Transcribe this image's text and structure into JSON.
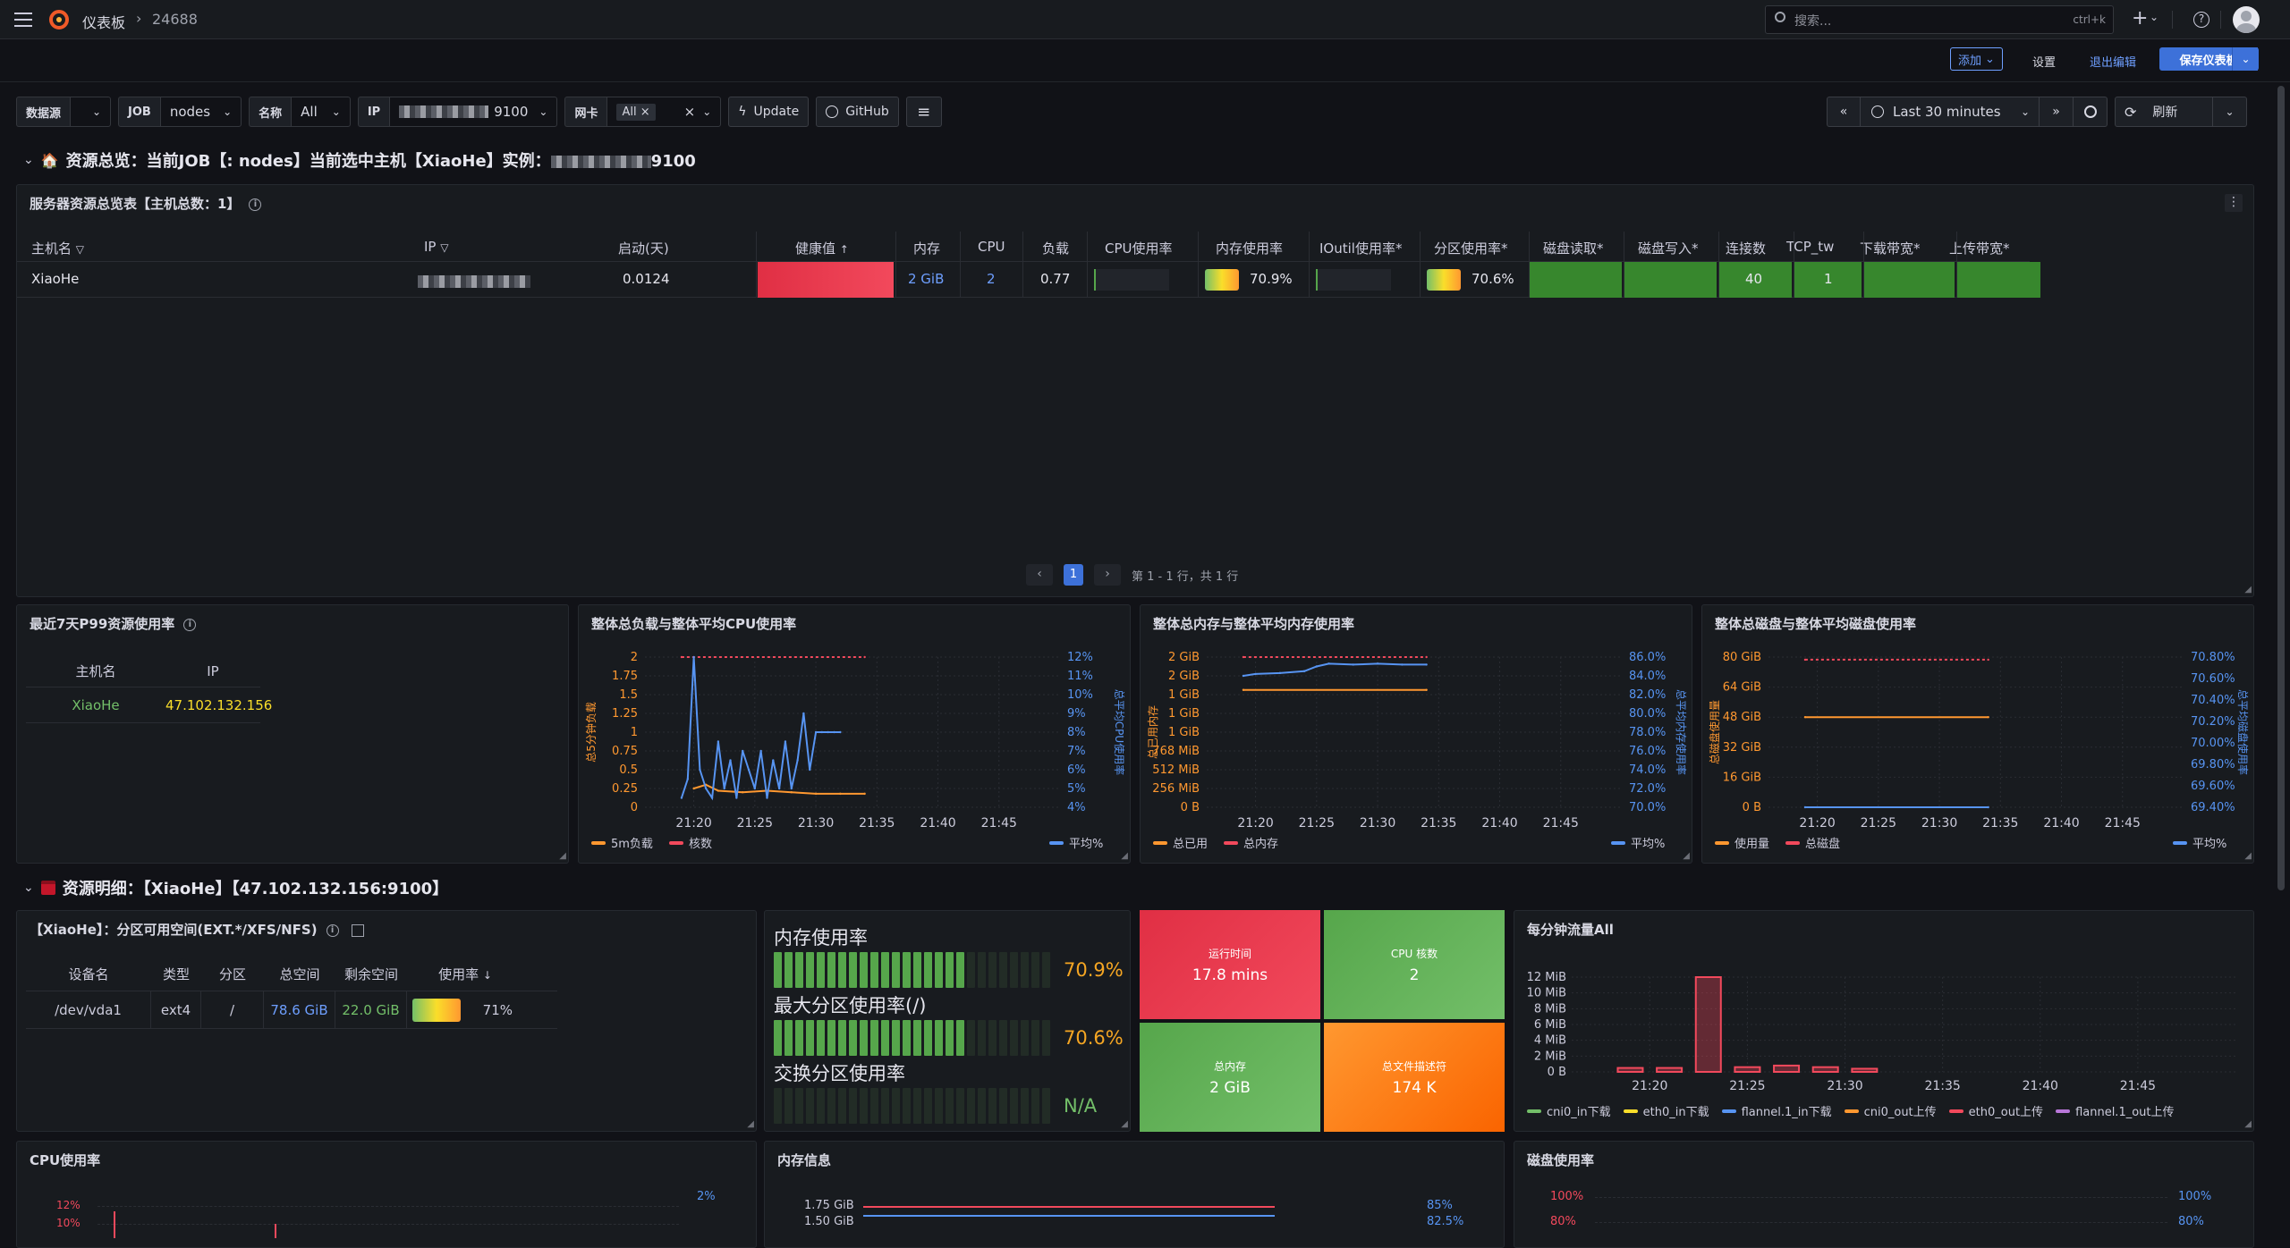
{
  "topbar": {
    "breadcrumb_root": "仪表板",
    "breadcrumb_current": "24688",
    "search_placeholder": "搜索...",
    "search_shortcut": "ctrl+k",
    "add_label": "添加",
    "settings_label": "设置",
    "exit_edit_label": "退出编辑",
    "save_label": "保存仪表板"
  },
  "variables": {
    "datasource_label": "数据源",
    "job_label": "JOB",
    "job_value": "nodes",
    "name_label": "名称",
    "name_value": "All",
    "ip_label": "IP",
    "ip_value_tail": "9100",
    "nic_label": "网卡",
    "nic_value": "All",
    "update_label": "Update",
    "github_label": "GitHub"
  },
  "timepicker": {
    "range_label": "Last 30 minutes",
    "refresh_label": "刷新"
  },
  "row1": {
    "title_prefix": "资源总览：当前JOB【: nodes】当前选中主机【XiaoHe】实例：",
    "title_suffix": "9100"
  },
  "overview_table": {
    "title": "服务器资源总览表【主机总数：1】",
    "headers": [
      "主机名",
      "IP",
      "启动(天)",
      "健康值",
      "内存",
      "CPU",
      "负载",
      "CPU使用率",
      "内存使用率",
      "IOutil使用率*",
      "分区使用率*",
      "磁盘读取*",
      "磁盘写入*",
      "连接数",
      "TCP_tw",
      "下载带宽*",
      "上传带宽*"
    ],
    "row": {
      "hostname": "XiaoHe",
      "uptime": "0.0124",
      "memory": "2 GiB",
      "cpu": "2",
      "load": "0.77",
      "mem_usage": "70.9%",
      "mem_usage_fraction": 0.709,
      "part_usage": "70.6%",
      "part_usage_fraction": 0.706,
      "connections": "40",
      "tcp_tw": "1"
    },
    "pagination": {
      "page": "1",
      "summary": "第 1 - 1 行，共 1 行"
    }
  },
  "p99_panel": {
    "title": "最近7天P99资源使用率",
    "headers": [
      "主机名",
      "IP"
    ],
    "hostname": "XiaoHe",
    "ip": "47.102.132.156"
  },
  "load_cpu_chart": {
    "title": "整体总负载与整体平均CPU使用率",
    "ylabel_left": "总5分钟负载",
    "ylabel_right": "总平均CPU使用率",
    "legend": [
      "5m负载",
      "核数",
      "平均%"
    ]
  },
  "mem_chart": {
    "title": "整体总内存与整体平均内存使用率",
    "ylabel_left": "总已用内存",
    "ylabel_right": "总平均内存使用率",
    "legend": [
      "总已用",
      "总内存",
      "平均%"
    ]
  },
  "disk_chart": {
    "title": "整体总磁盘与整体平均磁盘使用率",
    "ylabel_left": "总磁盘使用量",
    "ylabel_right": "总平均磁盘使用率",
    "legend": [
      "使用量",
      "总磁盘",
      "平均%"
    ]
  },
  "chart_data": [
    {
      "type": "line",
      "title": "整体总负载与整体平均CPU使用率",
      "x_ticks": [
        "21:20",
        "21:25",
        "21:30",
        "21:35",
        "21:40",
        "21:45"
      ],
      "y_left_ticks": [
        "0",
        "0.25",
        "0.5",
        "0.75",
        "1",
        "1.25",
        "1.5",
        "1.75",
        "2"
      ],
      "y_right_ticks": [
        "4%",
        "5%",
        "6%",
        "7%",
        "8%",
        "9%",
        "10%",
        "11%",
        "12%"
      ],
      "ylim_left": [
        0,
        2
      ],
      "ylim_right": [
        4,
        12
      ],
      "series": [
        {
          "name": "5m负载",
          "axis": "left",
          "color": "#ff9830",
          "x_minutes": [
            20,
            21,
            22,
            24,
            26,
            28,
            30,
            32,
            34
          ],
          "values": [
            0.25,
            0.3,
            0.22,
            0.2,
            0.22,
            0.2,
            0.18,
            0.18,
            0.18
          ]
        },
        {
          "name": "核数",
          "axis": "left",
          "color": "#f2495c",
          "x_minutes": [
            19,
            34
          ],
          "values": [
            2,
            2
          ]
        },
        {
          "name": "平均%",
          "axis": "right",
          "color": "#5794f2",
          "x_minutes": [
            19,
            19.5,
            20,
            20.5,
            21,
            21.5,
            22,
            22.5,
            23,
            23.5,
            24,
            24.5,
            25,
            25.5,
            26,
            26.5,
            27,
            27.5,
            28,
            28.5,
            29,
            29.5,
            30,
            30.5,
            31,
            31.5,
            32
          ],
          "values": [
            4.5,
            5.5,
            12,
            6,
            5,
            4.5,
            7.5,
            5,
            6.5,
            4.5,
            7,
            6,
            5,
            7,
            4.5,
            6.5,
            5,
            7.5,
            5,
            6.5,
            9,
            6,
            8,
            8,
            8,
            8,
            8
          ]
        }
      ]
    },
    {
      "type": "line",
      "title": "整体总内存与整体平均内存使用率",
      "x_ticks": [
        "21:20",
        "21:25",
        "21:30",
        "21:35",
        "21:40",
        "21:45"
      ],
      "y_left_ticks": [
        "0 B",
        "256 MiB",
        "512 MiB",
        "768 MiB",
        "1 GiB",
        "1 GiB",
        "1 GiB",
        "2 GiB",
        "2 GiB"
      ],
      "y_right_ticks": [
        "70.0%",
        "72.0%",
        "74.0%",
        "76.0%",
        "78.0%",
        "80.0%",
        "82.0%",
        "84.0%",
        "86.0%"
      ],
      "series": [
        {
          "name": "总已用",
          "axis": "left",
          "color": "#ff9830",
          "x_minutes": [
            19,
            34
          ],
          "values_mib": [
            1600,
            1600
          ]
        },
        {
          "name": "总内存",
          "axis": "left",
          "color": "#f2495c",
          "x_minutes": [
            19,
            34
          ],
          "values_mib": [
            2048,
            2048
          ]
        },
        {
          "name": "平均%",
          "axis": "right",
          "color": "#5794f2",
          "x_minutes": [
            19,
            20,
            22,
            24,
            25,
            26,
            28,
            30,
            32,
            34
          ],
          "values": [
            84.0,
            84.2,
            84.3,
            84.5,
            85.0,
            85.3,
            85.2,
            85.3,
            85.2,
            85.2
          ]
        }
      ]
    },
    {
      "type": "line",
      "title": "整体总磁盘与整体平均磁盘使用率",
      "x_ticks": [
        "21:20",
        "21:25",
        "21:30",
        "21:35",
        "21:40",
        "21:45"
      ],
      "y_left_ticks": [
        "0 B",
        "16 GiB",
        "32 GiB",
        "48 GiB",
        "64 GiB",
        "80 GiB"
      ],
      "y_right_ticks": [
        "69.40%",
        "69.60%",
        "69.80%",
        "70.00%",
        "70.20%",
        "70.40%",
        "70.60%",
        "70.80%"
      ],
      "series": [
        {
          "name": "使用量",
          "axis": "left",
          "color": "#ff9830",
          "x_minutes": [
            19,
            34
          ],
          "values": [
            48,
            48
          ]
        },
        {
          "name": "总磁盘",
          "axis": "left",
          "color": "#f2495c",
          "x_minutes": [
            19,
            34
          ],
          "values": [
            78.6,
            78.6
          ]
        },
        {
          "name": "平均%",
          "axis": "right",
          "color": "#5794f2",
          "x_minutes": [
            19,
            34
          ],
          "values": [
            69.4,
            69.4
          ]
        }
      ]
    },
    {
      "type": "bar",
      "title": "每分钟流量All",
      "x_ticks": [
        "21:20",
        "21:25",
        "21:30",
        "21:35",
        "21:40",
        "21:45"
      ],
      "y_ticks": [
        "0 B",
        "2 MiB",
        "4 MiB",
        "6 MiB",
        "8 MiB",
        "10 MiB",
        "12 MiB"
      ],
      "series": [
        {
          "name": "cni0_in下载",
          "color": "#73bf69"
        },
        {
          "name": "eth0_in下载",
          "color": "#fade2a"
        },
        {
          "name": "flannel.1_in下载",
          "color": "#5794f2"
        },
        {
          "name": "cni0_out上传",
          "color": "#ff9830"
        },
        {
          "name": "eth0_out上传",
          "color": "#f2495c",
          "x_minutes": [
            19,
            21,
            23,
            25,
            27,
            29,
            31
          ],
          "values_mib": [
            0.5,
            0.5,
            12,
            0.6,
            0.8,
            0.6,
            0.4
          ]
        },
        {
          "name": "flannel.1_out上传",
          "color": "#b877d9"
        }
      ]
    }
  ],
  "row2": {
    "title": "资源明细：【XiaoHe】【47.102.132.156:9100】"
  },
  "partition_panel": {
    "title": "【XiaoHe】：分区可用空间(EXT.*/XFS/NFS)",
    "headers": [
      "设备名",
      "类型",
      "分区",
      "总空间",
      "剩余空间",
      "使用率"
    ],
    "device": "/dev/vda1",
    "fstype": "ext4",
    "mount": "/",
    "total": "78.6 GiB",
    "free": "22.0 GiB",
    "usage": "71%",
    "usage_fraction": 0.71
  },
  "bargauges": [
    {
      "label": "内存使用率",
      "value": "70.9%",
      "fraction": 0.709
    },
    {
      "label": "最大分区使用率(/)",
      "value": "70.6%",
      "fraction": 0.706
    },
    {
      "label": "交换分区使用率",
      "value": "N/A",
      "fraction": 0
    }
  ],
  "stat_tiles": [
    {
      "label": "运行时间",
      "value": "17.8 mins",
      "color": "#e02f44"
    },
    {
      "label": "CPU 核数",
      "value": "2",
      "color": "#56a64b"
    },
    {
      "label": "总内存",
      "value": "2 GiB",
      "color": "#56a64b"
    },
    {
      "label": "总文件描述符",
      "value": "174 K",
      "color": "#ff7a1a"
    }
  ],
  "traffic_panel": {
    "title": "每分钟流量All"
  },
  "bottom_panels": {
    "cpu_title": "CPU使用率",
    "cpu_y_left": [
      "12%",
      "10%"
    ],
    "cpu_y_right": "2%",
    "mem_title": "内存信息",
    "mem_y_left": [
      "1.75 GiB",
      "1.50 GiB"
    ],
    "mem_y_right": [
      "85%",
      "82.5%"
    ],
    "disk_title": "磁盘使用率",
    "disk_y_left": [
      "100%",
      "80%"
    ],
    "disk_y_right": [
      "100%",
      "80%"
    ]
  },
  "colors": {
    "accent": "#3d71d9",
    "health_red": "#e02f44",
    "ok_green": "#37872d"
  }
}
